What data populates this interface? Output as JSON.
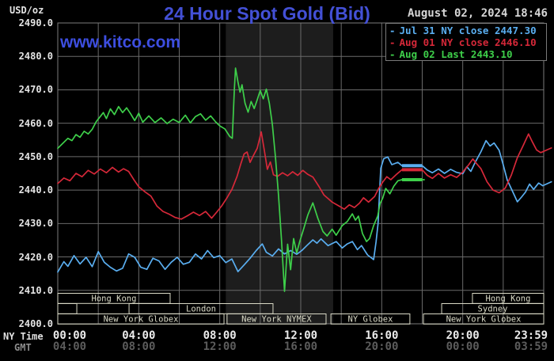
{
  "header": {
    "units_label": "USD/oz",
    "title": "24 Hour Spot Gold (Bid)",
    "datetime": "August 02, 2024 18:46",
    "watermark": "www.kitco.com"
  },
  "legend": {
    "items": [
      {
        "dash": "-",
        "label": "Jul 31 NY close 2447.30",
        "color": "#5aaef0"
      },
      {
        "dash": "-",
        "label": "Aug 01 NY close 2446.10",
        "color": "#d62839"
      },
      {
        "dash": "-",
        "label": "Aug 02 Last 2443.10",
        "color": "#3ecf4a"
      }
    ]
  },
  "axes": {
    "ny_time_label": "NY Time",
    "gmt_label": "GMT"
  },
  "chart_data": {
    "type": "line",
    "title": "24 Hour Spot Gold (Bid)",
    "ylabel": "USD/oz",
    "ylim": [
      2400,
      2490
    ],
    "grid": true,
    "y_ticks": [
      "2490.0",
      "2480.0",
      "2470.0",
      "2460.0",
      "2450.0",
      "2440.0",
      "2430.0",
      "2420.0",
      "2410.0",
      "2400.0"
    ],
    "y_tick_values": [
      2490,
      2480,
      2470,
      2460,
      2450,
      2440,
      2430,
      2420,
      2410,
      2400
    ],
    "x_tick_hours": [
      0,
      4,
      8,
      12,
      16,
      20,
      24
    ],
    "ny_ticks": [
      "00:00",
      "04:00",
      "08:00",
      "12:00",
      "16:00",
      "20:00",
      "23:59"
    ],
    "gmt_ticks": [
      "04:00",
      "08:00",
      "12:00",
      "16:00",
      "20:00",
      "00:00",
      "03:59"
    ],
    "nymex_band_hours": [
      8.3,
      13.6
    ],
    "band_color": "#1d1d1d",
    "grid_color": "#6a6a6a",
    "sessions": [
      {
        "row": 0,
        "h1": 0,
        "h2": 5.55,
        "label": "Hong Kong"
      },
      {
        "row": 0,
        "h1": 20.48,
        "h2": 24,
        "label": "Hong Kong"
      },
      {
        "row": 1,
        "h1": 0,
        "h2": 0.94,
        "label": ""
      },
      {
        "row": 1,
        "h1": 3.52,
        "h2": 10.63,
        "label": "London"
      },
      {
        "row": 1,
        "h1": 18.96,
        "h2": 24,
        "label": "Sydney"
      },
      {
        "row": 2,
        "h1": 0,
        "h2": 8.21,
        "label": "New York Globex"
      },
      {
        "row": 2,
        "h1": 8.36,
        "h2": 13.25,
        "label": "New York NYMEX"
      },
      {
        "row": 2,
        "h1": 13.49,
        "h2": 17.39,
        "label": "NY Globex"
      },
      {
        "row": 2,
        "h1": 18.06,
        "h2": 24,
        "label": "New York Globex"
      }
    ],
    "series": [
      {
        "name": "Jul 31",
        "color": "#5aaef0",
        "close_value": 2447.3,
        "close_segment_hours": [
          17,
          18
        ],
        "points": [
          [
            0,
            2415.5
          ],
          [
            0.3,
            2418.6
          ],
          [
            0.5,
            2417.2
          ],
          [
            0.8,
            2420.4
          ],
          [
            1.1,
            2417.9
          ],
          [
            1.4,
            2419.9
          ],
          [
            1.7,
            2417.1
          ],
          [
            2,
            2421.6
          ],
          [
            2.3,
            2418.4
          ],
          [
            2.6,
            2416.9
          ],
          [
            2.9,
            2415.8
          ],
          [
            3.2,
            2416.6
          ],
          [
            3.5,
            2420.9
          ],
          [
            3.8,
            2419.9
          ],
          [
            4.1,
            2416.9
          ],
          [
            4.4,
            2416.3
          ],
          [
            4.7,
            2419.6
          ],
          [
            5,
            2418.8
          ],
          [
            5.3,
            2416.3
          ],
          [
            5.6,
            2418.4
          ],
          [
            5.9,
            2419.9
          ],
          [
            6.2,
            2417.8
          ],
          [
            6.5,
            2418.4
          ],
          [
            6.8,
            2420.9
          ],
          [
            7.1,
            2419.4
          ],
          [
            7.4,
            2421.9
          ],
          [
            7.7,
            2419.8
          ],
          [
            8,
            2420.4
          ],
          [
            8.3,
            2418.3
          ],
          [
            8.6,
            2419.4
          ],
          [
            8.9,
            2415.6
          ],
          [
            9.2,
            2417.6
          ],
          [
            9.5,
            2419.6
          ],
          [
            9.8,
            2421.9
          ],
          [
            10.1,
            2423.9
          ],
          [
            10.3,
            2421.4
          ],
          [
            10.6,
            2420.3
          ],
          [
            10.9,
            2422.4
          ],
          [
            11.2,
            2420.9
          ],
          [
            11.5,
            2421.9
          ],
          [
            11.8,
            2420.8
          ],
          [
            12.05,
            2421.9
          ],
          [
            12.3,
            2423.4
          ],
          [
            12.6,
            2425.1
          ],
          [
            12.8,
            2424.1
          ],
          [
            13,
            2425.4
          ],
          [
            13.35,
            2423.4
          ],
          [
            13.75,
            2424.6
          ],
          [
            14.05,
            2422.7
          ],
          [
            14.3,
            2423.9
          ],
          [
            14.55,
            2424.6
          ],
          [
            14.8,
            2422.2
          ],
          [
            15,
            2423.4
          ],
          [
            15.3,
            2420.6
          ],
          [
            15.6,
            2419.2
          ],
          [
            15.72,
            2424.6
          ],
          [
            15.82,
            2430
          ],
          [
            15.95,
            2446.5
          ],
          [
            16.1,
            2449.4
          ],
          [
            16.3,
            2449.9
          ],
          [
            16.5,
            2447.6
          ],
          [
            16.8,
            2448.3
          ],
          [
            17,
            2447.3
          ],
          [
            18,
            2447.3
          ],
          [
            18.25,
            2446
          ],
          [
            18.5,
            2445.2
          ],
          [
            18.8,
            2446.3
          ],
          [
            19.1,
            2445
          ],
          [
            19.4,
            2446.2
          ],
          [
            19.7,
            2445.3
          ],
          [
            20,
            2444.9
          ],
          [
            20.2,
            2447
          ],
          [
            20.4,
            2445.6
          ],
          [
            20.6,
            2448.1
          ],
          [
            20.9,
            2451.5
          ],
          [
            21.15,
            2454.8
          ],
          [
            21.35,
            2453.2
          ],
          [
            21.55,
            2454.1
          ],
          [
            21.8,
            2451.9
          ],
          [
            22,
            2447.6
          ],
          [
            22.2,
            2443
          ],
          [
            22.45,
            2439.8
          ],
          [
            22.7,
            2436.5
          ],
          [
            22.9,
            2437.9
          ],
          [
            23.1,
            2439.4
          ],
          [
            23.3,
            2441.8
          ],
          [
            23.5,
            2440.2
          ],
          [
            23.75,
            2442.1
          ],
          [
            23.95,
            2441.3
          ],
          [
            24.38,
            2442.5
          ]
        ]
      },
      {
        "name": "Aug 01",
        "color": "#d62839",
        "close_value": 2446.1,
        "close_segment_hours": [
          17,
          18
        ],
        "points": [
          [
            0,
            2442
          ],
          [
            0.3,
            2443.6
          ],
          [
            0.6,
            2442.8
          ],
          [
            0.9,
            2445
          ],
          [
            1.2,
            2444
          ],
          [
            1.5,
            2445.9
          ],
          [
            1.8,
            2444.8
          ],
          [
            2.1,
            2446.3
          ],
          [
            2.4,
            2445.2
          ],
          [
            2.7,
            2446.8
          ],
          [
            3,
            2445.4
          ],
          [
            3.25,
            2446.4
          ],
          [
            3.5,
            2445.6
          ],
          [
            3.75,
            2443.2
          ],
          [
            4,
            2441
          ],
          [
            4.3,
            2439.5
          ],
          [
            4.6,
            2438.2
          ],
          [
            4.9,
            2435.2
          ],
          [
            5.2,
            2433.6
          ],
          [
            5.5,
            2432.8
          ],
          [
            5.8,
            2431.8
          ],
          [
            6.1,
            2431.3
          ],
          [
            6.4,
            2432.3
          ],
          [
            6.7,
            2433.4
          ],
          [
            7,
            2432.4
          ],
          [
            7.3,
            2433.6
          ],
          [
            7.6,
            2431.6
          ],
          [
            7.85,
            2433.4
          ],
          [
            8.1,
            2435.3
          ],
          [
            8.35,
            2437.6
          ],
          [
            8.6,
            2440.2
          ],
          [
            8.85,
            2444
          ],
          [
            9.05,
            2448
          ],
          [
            9.2,
            2450.8
          ],
          [
            9.35,
            2451.4
          ],
          [
            9.5,
            2448.3
          ],
          [
            9.65,
            2450.2
          ],
          [
            9.85,
            2452.5
          ],
          [
            10.05,
            2457.4
          ],
          [
            10.2,
            2452
          ],
          [
            10.35,
            2446.2
          ],
          [
            10.5,
            2448.4
          ],
          [
            10.65,
            2444.6
          ],
          [
            10.85,
            2444.1
          ],
          [
            11.1,
            2445.2
          ],
          [
            11.35,
            2444.3
          ],
          [
            11.6,
            2445.5
          ],
          [
            11.85,
            2444.4
          ],
          [
            12.1,
            2445.9
          ],
          [
            12.35,
            2444.7
          ],
          [
            12.6,
            2443.9
          ],
          [
            12.9,
            2441.1
          ],
          [
            13.15,
            2438.5
          ],
          [
            13.55,
            2436.4
          ],
          [
            13.9,
            2435.2
          ],
          [
            14.15,
            2434.3
          ],
          [
            14.4,
            2435.6
          ],
          [
            14.65,
            2434.8
          ],
          [
            14.9,
            2436.1
          ],
          [
            15.1,
            2437.7
          ],
          [
            15.35,
            2436.4
          ],
          [
            15.65,
            2438.1
          ],
          [
            15.85,
            2440.5
          ],
          [
            16.05,
            2442.4
          ],
          [
            16.25,
            2444
          ],
          [
            16.45,
            2443.1
          ],
          [
            16.75,
            2444.8
          ],
          [
            17,
            2446.1
          ],
          [
            18,
            2446.1
          ],
          [
            18.25,
            2444.4
          ],
          [
            18.5,
            2443.5
          ],
          [
            18.8,
            2445
          ],
          [
            19.1,
            2443.6
          ],
          [
            19.4,
            2444.6
          ],
          [
            19.7,
            2443.8
          ],
          [
            20,
            2445.4
          ],
          [
            20.3,
            2447.6
          ],
          [
            20.5,
            2449.3
          ],
          [
            20.7,
            2447.8
          ],
          [
            20.9,
            2446.4
          ],
          [
            21.2,
            2442.5
          ],
          [
            21.5,
            2440
          ],
          [
            21.8,
            2439.2
          ],
          [
            22.1,
            2440.6
          ],
          [
            22.4,
            2444.5
          ],
          [
            22.7,
            2449.7
          ],
          [
            23,
            2453.5
          ],
          [
            23.25,
            2456.8
          ],
          [
            23.45,
            2454.3
          ],
          [
            23.65,
            2452
          ],
          [
            23.85,
            2451.2
          ],
          [
            24.38,
            2452.6
          ]
        ]
      },
      {
        "name": "Aug 02",
        "color": "#3ecf4a",
        "close_value": 2443.1,
        "close_segment_hours": [
          17,
          18
        ],
        "points": [
          [
            0,
            2452.5
          ],
          [
            0.25,
            2454
          ],
          [
            0.5,
            2455.5
          ],
          [
            0.7,
            2454.8
          ],
          [
            0.9,
            2456.6
          ],
          [
            1.1,
            2455.8
          ],
          [
            1.3,
            2457.6
          ],
          [
            1.5,
            2456.8
          ],
          [
            1.7,
            2458.2
          ],
          [
            1.9,
            2460.5
          ],
          [
            2.1,
            2462
          ],
          [
            2.25,
            2463.2
          ],
          [
            2.4,
            2461.4
          ],
          [
            2.6,
            2464.3
          ],
          [
            2.8,
            2462.6
          ],
          [
            3,
            2465
          ],
          [
            3.2,
            2463.2
          ],
          [
            3.4,
            2464.6
          ],
          [
            3.6,
            2462.8
          ],
          [
            3.8,
            2460.8
          ],
          [
            4,
            2463
          ],
          [
            4.2,
            2460.3
          ],
          [
            4.5,
            2462.2
          ],
          [
            4.8,
            2460.2
          ],
          [
            5.1,
            2461.6
          ],
          [
            5.4,
            2459.9
          ],
          [
            5.7,
            2461.2
          ],
          [
            6,
            2460.2
          ],
          [
            6.3,
            2462.4
          ],
          [
            6.55,
            2460.1
          ],
          [
            6.8,
            2462
          ],
          [
            7.05,
            2462.8
          ],
          [
            7.3,
            2460.9
          ],
          [
            7.55,
            2462.2
          ],
          [
            7.8,
            2460.4
          ],
          [
            8,
            2459.2
          ],
          [
            8.25,
            2458.3
          ],
          [
            8.5,
            2456
          ],
          [
            8.62,
            2455.5
          ],
          [
            8.72,
            2470
          ],
          [
            8.78,
            2476.5
          ],
          [
            8.9,
            2472.3
          ],
          [
            9,
            2469.3
          ],
          [
            9.1,
            2471.5
          ],
          [
            9.25,
            2466
          ],
          [
            9.4,
            2463.3
          ],
          [
            9.55,
            2466.5
          ],
          [
            9.7,
            2464.4
          ],
          [
            9.85,
            2467
          ],
          [
            10,
            2469.8
          ],
          [
            10.15,
            2467.3
          ],
          [
            10.3,
            2470.2
          ],
          [
            10.45,
            2466
          ],
          [
            10.6,
            2459.5
          ],
          [
            10.75,
            2450
          ],
          [
            10.9,
            2438.5
          ],
          [
            11.05,
            2425
          ],
          [
            11.2,
            2409.7
          ],
          [
            11.35,
            2423.8
          ],
          [
            11.5,
            2416.2
          ],
          [
            11.65,
            2425.5
          ],
          [
            11.8,
            2421.2
          ],
          [
            11.95,
            2424.6
          ],
          [
            12.15,
            2428.5
          ],
          [
            12.35,
            2432.6
          ],
          [
            12.6,
            2436.2
          ],
          [
            12.85,
            2431.5
          ],
          [
            13.1,
            2427.6
          ],
          [
            13.3,
            2426.3
          ],
          [
            13.55,
            2428.3
          ],
          [
            13.75,
            2426.5
          ],
          [
            14.05,
            2429.4
          ],
          [
            14.3,
            2430.6
          ],
          [
            14.55,
            2432.9
          ],
          [
            14.7,
            2431
          ],
          [
            14.85,
            2432.2
          ],
          [
            15.05,
            2427
          ],
          [
            15.25,
            2424.6
          ],
          [
            15.4,
            2425.5
          ],
          [
            15.6,
            2429.4
          ],
          [
            15.8,
            2432.2
          ],
          [
            15.92,
            2436
          ],
          [
            16.05,
            2437.6
          ],
          [
            16.2,
            2440.5
          ],
          [
            16.4,
            2438.9
          ],
          [
            16.6,
            2441.2
          ],
          [
            16.8,
            2442.8
          ],
          [
            17,
            2443.1
          ],
          [
            18,
            2443.1
          ],
          [
            18.1,
            2443.1
          ]
        ]
      }
    ]
  }
}
